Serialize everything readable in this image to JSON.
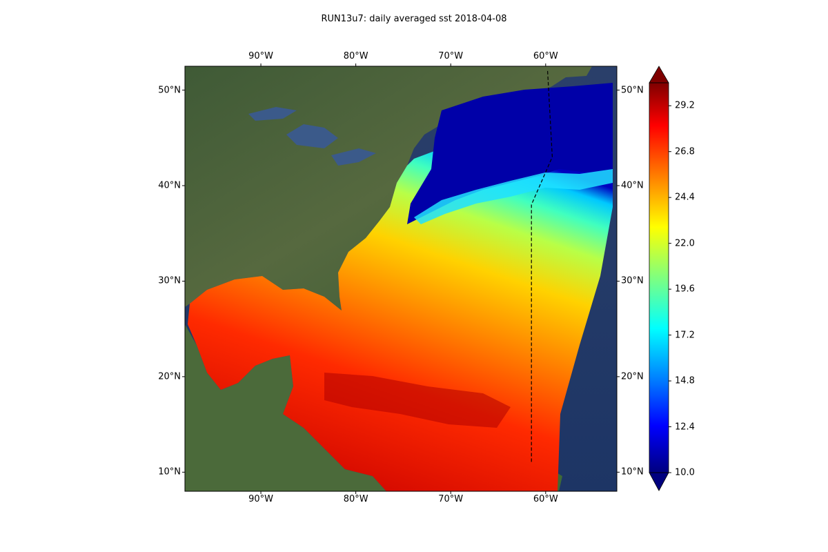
{
  "title": "RUN13u7: daily averaged sst 2018-04-08",
  "map": {
    "lon_range": [
      -98,
      -52.5
    ],
    "lat_range": [
      8,
      52.5
    ],
    "lon_ticks": [
      {
        "lon": -90,
        "label": "90°W"
      },
      {
        "lon": -80,
        "label": "80°W"
      },
      {
        "lon": -70,
        "label": "70°W"
      },
      {
        "lon": -60,
        "label": "60°W"
      }
    ],
    "lat_ticks": [
      {
        "lat": 10,
        "label": "10°N"
      },
      {
        "lat": 20,
        "label": "20°N"
      },
      {
        "lat": 30,
        "label": "30°N"
      },
      {
        "lat": 40,
        "label": "40°N"
      },
      {
        "lat": 50,
        "label": "50°N"
      }
    ],
    "background": "satellite imagery",
    "field": "sst",
    "dashed_boundary": [
      [
        -59.8,
        52
      ],
      [
        -59.3,
        43
      ],
      [
        -61.5,
        38
      ],
      [
        -61.5,
        11
      ]
    ]
  },
  "colorbar": {
    "min": 10.0,
    "max": 30.4,
    "extend": "both",
    "colormap": "jet",
    "tick_values": [
      10.0,
      12.4,
      14.8,
      17.2,
      19.6,
      22.0,
      24.4,
      26.8,
      29.2
    ],
    "tick_labels": [
      "10.0",
      "12.4",
      "14.8",
      "17.2",
      "19.6",
      "22.0",
      "24.4",
      "26.8",
      "29.2"
    ],
    "colors": [
      "#00007f",
      "#0000ff",
      "#007fff",
      "#00ffff",
      "#7fff7f",
      "#ffff00",
      "#ff7f00",
      "#ff0000",
      "#7f0000"
    ]
  }
}
